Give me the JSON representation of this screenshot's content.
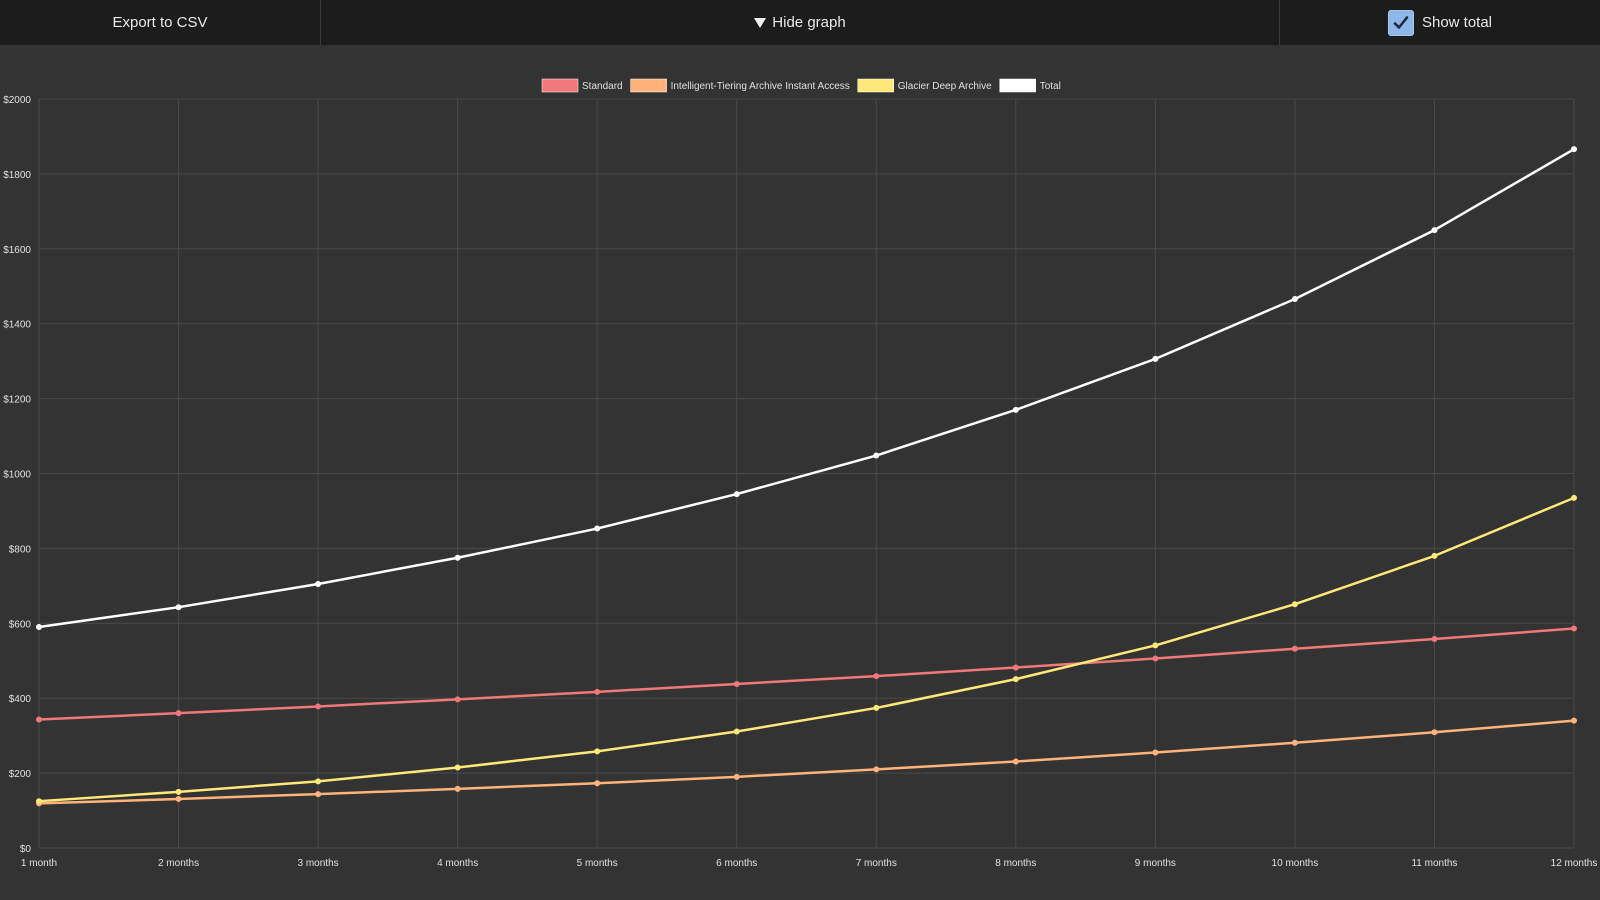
{
  "toolbar": {
    "export_label": "Export to CSV",
    "hide_graph_label": "Hide graph",
    "show_total_label": "Show total",
    "show_total_checked": true
  },
  "colors": {
    "background": "#333333",
    "toolbar": "#1c1c1c",
    "grid": "#4a4a4a",
    "standard": "#f07878",
    "intelligent": "#ffb27a",
    "glacier": "#ffe87a",
    "total": "#ffffff"
  },
  "chart_data": {
    "type": "line",
    "title": "",
    "xlabel": "",
    "ylabel": "",
    "x": [
      "1 month",
      "2 months",
      "3 months",
      "4 months",
      "5 months",
      "6 months",
      "7 months",
      "8 months",
      "9 months",
      "10 months",
      "11 months",
      "12 months"
    ],
    "ylim": [
      0,
      2000
    ],
    "yticks": [
      "$0",
      "$200",
      "$400",
      "$600",
      "$800",
      "$1000",
      "$1200",
      "$1400",
      "$1600",
      "$1800",
      "$2000"
    ],
    "grid": true,
    "legend_position": "top-center",
    "series": [
      {
        "name": "Standard",
        "color": "#f07878",
        "values": [
          343,
          360,
          378,
          397,
          417,
          438,
          459,
          482,
          506,
          532,
          558,
          586
        ]
      },
      {
        "name": "Intelligent-Tiering Archive Instant Access",
        "color": "#ffb27a",
        "values": [
          119,
          131,
          144,
          158,
          173,
          190,
          210,
          231,
          255,
          281,
          309,
          340
        ]
      },
      {
        "name": "Glacier Deep Archive",
        "color": "#ffe87a",
        "values": [
          125,
          150,
          178,
          215,
          258,
          311,
          374,
          451,
          541,
          651,
          780,
          935
        ]
      },
      {
        "name": "Total",
        "color": "#ffffff",
        "values": [
          590,
          643,
          705,
          775,
          853,
          945,
          1048,
          1170,
          1306,
          1466,
          1650,
          1866
        ]
      }
    ]
  }
}
